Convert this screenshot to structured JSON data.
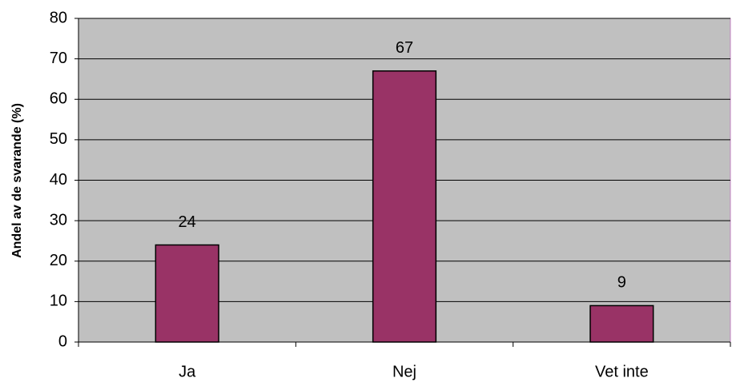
{
  "chart_data": {
    "type": "bar",
    "y_label": "Andel av de svarande (%)",
    "categories": [
      "Ja",
      "Nej",
      "Vet inte"
    ],
    "values": [
      24,
      67,
      9
    ],
    "color": "#993366",
    "ylim": [
      0,
      80
    ],
    "yticks": [
      0,
      10,
      20,
      30,
      40,
      50,
      60,
      70,
      80
    ],
    "grid": true,
    "plot_background": "#c0c0c0"
  }
}
